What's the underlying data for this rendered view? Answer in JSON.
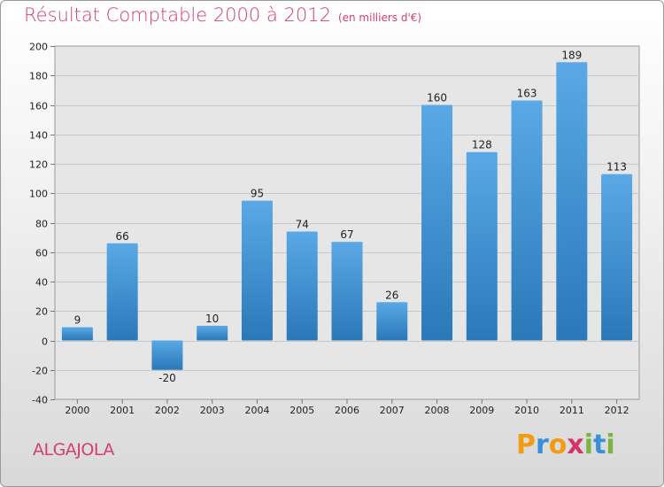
{
  "header": {
    "title": "Résultat Comptable 2000 à 2012",
    "unit": "(en milliers d'€)"
  },
  "footer": {
    "commune": "ALGAJOLA",
    "logo": [
      "P",
      "r",
      "o",
      "x",
      "i",
      "t",
      "i"
    ]
  },
  "colors": {
    "title": "#d43f6e",
    "bar_top": "#5aa9e6",
    "bar_bottom": "#2a78b8",
    "logo": [
      "#f39c12",
      "#3a8fd9",
      "#f39c12",
      "#d6336c",
      "#7cb342",
      "#3a8fd9",
      "#7cb342"
    ]
  },
  "chart_data": {
    "type": "bar",
    "title": "Résultat Comptable 2000 à 2012",
    "subtitle": "(en milliers d'€)",
    "categories": [
      "2000",
      "2001",
      "2002",
      "2003",
      "2004",
      "2005",
      "2006",
      "2007",
      "2008",
      "2009",
      "2010",
      "2011",
      "2012"
    ],
    "values": [
      9,
      66,
      -20,
      10,
      95,
      74,
      67,
      26,
      160,
      128,
      163,
      189,
      113
    ],
    "ylim": [
      -40,
      200
    ],
    "yticks": [
      -40,
      -20,
      0,
      20,
      40,
      60,
      80,
      100,
      120,
      140,
      160,
      180,
      200
    ],
    "grid": true,
    "legend": "none"
  }
}
